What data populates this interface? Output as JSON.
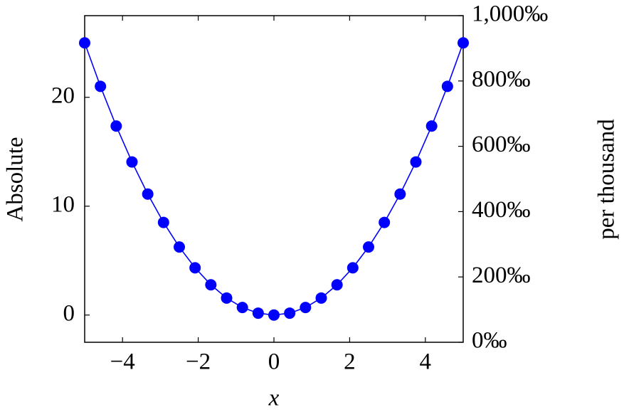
{
  "chart_data": {
    "type": "line",
    "xlabel": "x",
    "ylabel": "Absolute",
    "y2label": "per thousand",
    "xlim": [
      -5,
      5
    ],
    "xticks": [
      {
        "value": -4,
        "label": "−4"
      },
      {
        "value": -2,
        "label": "−2"
      },
      0,
      2,
      4
    ],
    "ylim": [
      -2.5,
      27.5
    ],
    "yticks": [
      0,
      10,
      20
    ],
    "y2lim": [
      0,
      1000
    ],
    "y2ticks": [
      {
        "value": 0,
        "label": "0‰"
      },
      {
        "value": 200,
        "label": "200‰"
      },
      {
        "value": 400,
        "label": "400‰"
      },
      {
        "value": 600,
        "label": "600‰"
      },
      {
        "value": 800,
        "label": "800‰"
      },
      {
        "value": 1000,
        "label": "1,000‰"
      }
    ],
    "x": [
      -5,
      -4.5833,
      -4.1667,
      -3.75,
      -3.3333,
      -2.9167,
      -2.5,
      -2.0833,
      -1.6667,
      -1.25,
      -0.8333,
      -0.4167,
      0,
      0.4167,
      0.8333,
      1.25,
      1.6667,
      2.0833,
      2.5,
      2.9167,
      3.3333,
      3.75,
      4.1667,
      4.5833,
      5
    ],
    "series": [
      {
        "color": "#0000ff",
        "values": [
          25,
          21.007,
          17.361,
          14.063,
          11.111,
          8.507,
          6.25,
          4.34,
          2.778,
          1.563,
          0.694,
          0.174,
          0,
          0.174,
          0.694,
          1.563,
          2.778,
          4.34,
          6.25,
          8.507,
          11.111,
          14.063,
          17.361,
          21.007,
          25
        ]
      }
    ]
  }
}
